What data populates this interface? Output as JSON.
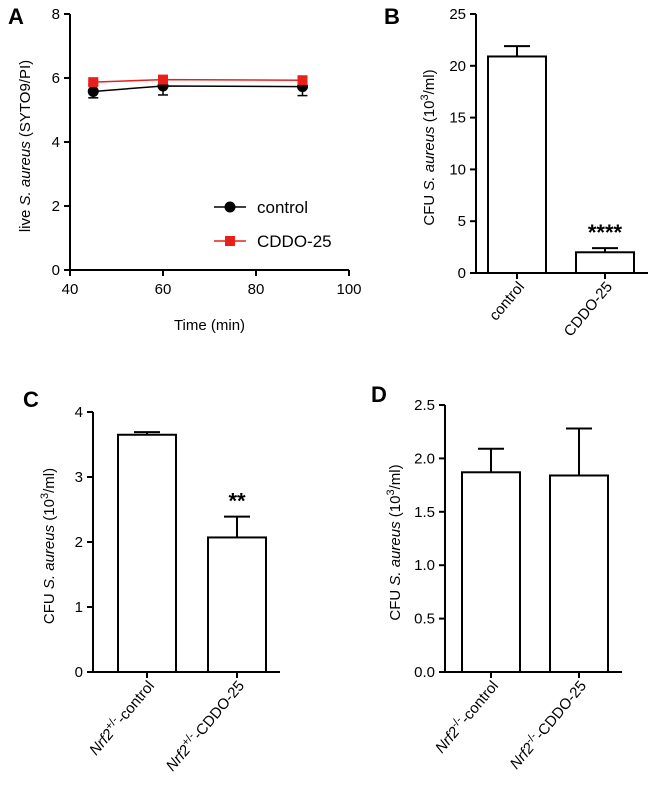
{
  "chart_data": [
    {
      "panel": "A",
      "type": "line",
      "xlabel": "Time (min)",
      "ylabel": "live S. aureus (SYTO9/PI)",
      "ylabel_parts": [
        "live ",
        "S. aureus",
        " (SYTO9/PI)"
      ],
      "xlim": [
        40,
        100
      ],
      "ylim": [
        0,
        8
      ],
      "xticks": [
        40,
        60,
        80,
        100
      ],
      "yticks": [
        0,
        2,
        4,
        6,
        8
      ],
      "legend_position": "bottom-right",
      "series": [
        {
          "name": "control",
          "color": "#000000",
          "marker": "circle",
          "x": [
            45,
            60,
            90
          ],
          "y": [
            5.58,
            5.75,
            5.73
          ],
          "err": [
            0.2,
            0.28,
            0.28
          ]
        },
        {
          "name": "CDDO-25",
          "color": "#e8201c",
          "marker": "square",
          "x": [
            45,
            60,
            90
          ],
          "y": [
            5.87,
            5.95,
            5.93
          ],
          "err": [
            0.05,
            0.08,
            0.08
          ]
        }
      ]
    },
    {
      "panel": "B",
      "type": "bar",
      "ylabel_parts": [
        "CFU ",
        "S. aureus",
        " (10",
        "3",
        "/ml)"
      ],
      "ylim": [
        0,
        25
      ],
      "yticks": [
        0,
        5,
        10,
        15,
        20,
        25
      ],
      "categories": [
        "control",
        "CDDO-25"
      ],
      "values": [
        20.9,
        2.0
      ],
      "err": [
        1.0,
        0.4
      ],
      "significance": [
        "",
        "****"
      ]
    },
    {
      "panel": "C",
      "type": "bar",
      "ylabel_parts": [
        "CFU ",
        "S. aureus",
        " (10",
        "3",
        "/ml)"
      ],
      "ylim": [
        0,
        4
      ],
      "yticks": [
        0,
        1,
        2,
        3,
        4
      ],
      "categories": [
        {
          "gene": "Nrf2",
          "sup": "+/-",
          "suffix": "-control"
        },
        {
          "gene": "Nrf2",
          "sup": "+/-",
          "suffix": "-CDDO-25"
        }
      ],
      "values": [
        3.65,
        2.07
      ],
      "err": [
        0.04,
        0.32
      ],
      "significance": [
        "",
        "**"
      ]
    },
    {
      "panel": "D",
      "type": "bar",
      "ylabel_parts": [
        "CFU ",
        "S. aureus",
        " (10",
        "3",
        "/ml)"
      ],
      "ylim": [
        0,
        2.5
      ],
      "yticks": [
        "0.0",
        "0.5",
        "1.0",
        "1.5",
        "2.0",
        "2.5"
      ],
      "categories": [
        {
          "gene": "Nrf2",
          "sup": "-/-",
          "suffix": "-control"
        },
        {
          "gene": "Nrf2",
          "sup": "-/-",
          "suffix": "-CDDO-25"
        }
      ],
      "values": [
        1.87,
        1.84
      ],
      "err": [
        0.22,
        0.44
      ],
      "significance": [
        "",
        ""
      ]
    }
  ]
}
